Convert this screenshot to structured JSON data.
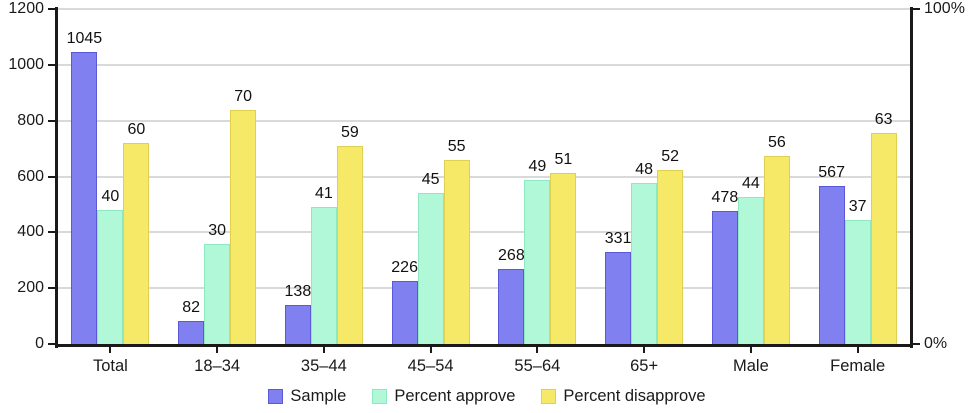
{
  "chart_data": {
    "type": "bar",
    "title": "",
    "categories": [
      "Total",
      "18–34",
      "35–44",
      "45–54",
      "55–64",
      "65+",
      "Male",
      "Female"
    ],
    "series": [
      {
        "name": "Sample",
        "axis": "left",
        "color": "#8080F0",
        "border_color": "#5a5ad8",
        "values": [
          1045,
          82,
          138,
          226,
          268,
          331,
          478,
          567
        ]
      },
      {
        "name": "Percent approve",
        "axis": "right",
        "color": "#B0F8D8",
        "border_color": "#8fe9c0",
        "values": [
          40,
          30,
          41,
          45,
          49,
          48,
          44,
          37
        ]
      },
      {
        "name": "Percent disapprove",
        "axis": "right",
        "color": "#F6E968",
        "border_color": "#e0d052",
        "values": [
          60,
          70,
          59,
          55,
          51,
          52,
          56,
          63
        ]
      }
    ],
    "left_axis": {
      "min": 0,
      "max": 1200,
      "tick_labels": [
        "0",
        "200",
        "400",
        "600",
        "800",
        "1000",
        "1200"
      ],
      "tick_values": [
        0,
        200,
        400,
        600,
        800,
        1000,
        1200
      ]
    },
    "right_axis": {
      "min": 0,
      "max": 100,
      "tick_labels": [
        "0%",
        "100%"
      ],
      "tick_values": [
        0,
        100
      ]
    },
    "grid": true,
    "legend_position": "bottom",
    "colors": {
      "axis": "#1a1a1a",
      "gridline": "#d9d9d9",
      "background": "#ffffff",
      "label_text": "#111111"
    }
  }
}
